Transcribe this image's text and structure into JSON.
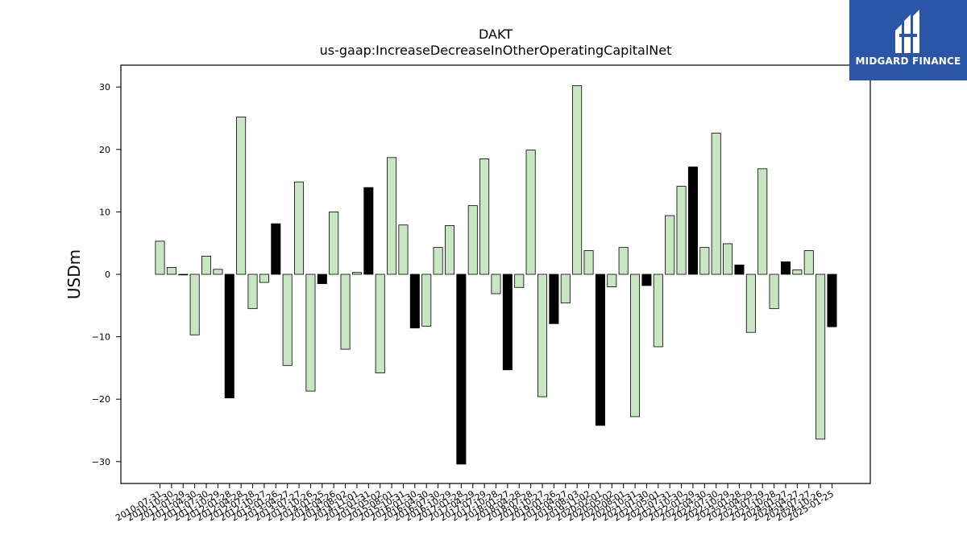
{
  "chart_data": {
    "type": "bar",
    "title": "DAKT",
    "subtitle": "us-gaap:IncreaseDecreaseInOtherOperatingCapitalNet",
    "xlabel": "",
    "ylabel": "USDm",
    "ylim": [
      -33.5,
      33.5
    ],
    "yticks": [
      -30,
      -20,
      -10,
      0,
      10,
      20,
      30
    ],
    "grid": false,
    "colors": {
      "default": "#c9e6c3",
      "highlight": "#000000",
      "edge": "#000000"
    },
    "categories": [
      "2010-07-31",
      "2010-10-30",
      "2011-01-29",
      "2011-04-30",
      "2011-07-30",
      "2011-10-29",
      "2012-01-28",
      "2012-04-28",
      "2012-07-28",
      "2012-10-27",
      "2013-01-26",
      "2013-04-27",
      "2013-07-27",
      "2013-10-26",
      "2014-01-25",
      "2014-04-26",
      "2014-08-02",
      "2014-11-01",
      "2015-01-31",
      "2015-05-02",
      "2015-08-01",
      "2015-10-31",
      "2016-01-30",
      "2016-04-30",
      "2016-07-30",
      "2016-10-29",
      "2017-01-28",
      "2017-04-29",
      "2017-07-29",
      "2017-10-28",
      "2018-01-27",
      "2018-04-28",
      "2018-07-28",
      "2018-10-27",
      "2019-01-26",
      "2019-04-27",
      "2019-08-03",
      "2019-11-02",
      "2020-02-01",
      "2020-05-02",
      "2020-08-01",
      "2020-10-31",
      "2021-01-30",
      "2021-05-01",
      "2021-07-31",
      "2021-10-30",
      "2022-01-29",
      "2022-04-30",
      "2022-07-30",
      "2022-10-29",
      "2023-01-28",
      "2023-04-29",
      "2023-07-29",
      "2023-10-28",
      "2024-01-27",
      "2024-04-27",
      "2024-07-27",
      "2024-10-26",
      "2025-01-25"
    ],
    "values": [
      5.3,
      1.1,
      0.0,
      -9.7,
      2.9,
      0.8,
      -19.8,
      25.2,
      -5.5,
      -1.3,
      8.1,
      -14.6,
      14.8,
      -18.7,
      -1.5,
      10.0,
      -12.0,
      0.3,
      13.9,
      -15.8,
      18.7,
      7.9,
      -8.6,
      -8.3,
      4.3,
      7.8,
      -30.4,
      11.0,
      18.5,
      -3.1,
      -15.3,
      -2.1,
      19.9,
      -19.6,
      -7.9,
      -4.6,
      30.2,
      3.8,
      -24.2,
      -2.0,
      4.3,
      -22.8,
      -1.8,
      -11.6,
      9.4,
      14.1,
      17.2,
      4.3,
      22.6,
      4.9,
      1.5,
      -9.3,
      16.9,
      -5.5,
      2.0,
      0.7,
      3.8,
      -26.4,
      -8.4
    ],
    "highlighted": [
      false,
      false,
      false,
      false,
      false,
      false,
      true,
      false,
      false,
      false,
      true,
      false,
      false,
      false,
      true,
      false,
      false,
      false,
      true,
      false,
      false,
      false,
      true,
      false,
      false,
      false,
      true,
      false,
      false,
      false,
      true,
      false,
      false,
      false,
      true,
      false,
      false,
      false,
      true,
      false,
      false,
      false,
      true,
      false,
      false,
      false,
      true,
      false,
      false,
      false,
      true,
      false,
      false,
      false,
      true,
      false,
      false,
      false,
      true
    ]
  },
  "logo": {
    "text": "MIDGARD FINANCE",
    "background": "#2b56a8"
  }
}
